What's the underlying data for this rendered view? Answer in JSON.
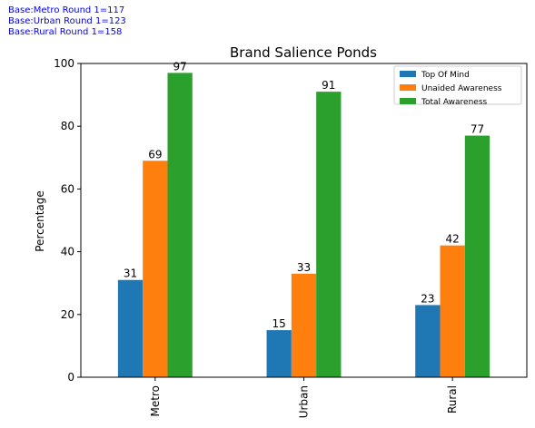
{
  "base_notes": [
    "Base:Metro Round 1=117",
    "Base:Urban Round 1=123",
    "Base:Rural Round 1=158"
  ],
  "chart_data": {
    "type": "bar",
    "title": "Brand Salience Ponds",
    "xlabel": "",
    "ylabel": "Percentage",
    "categories": [
      "Metro",
      "Urban",
      "Rural"
    ],
    "ylim": [
      0,
      100
    ],
    "yticks": [
      0,
      20,
      40,
      60,
      80,
      100
    ],
    "grid": false,
    "legend_position": "top-right",
    "series": [
      {
        "name": "Top Of Mind",
        "color": "#1f77b4",
        "values": [
          31,
          15,
          23
        ]
      },
      {
        "name": "Unaided Awareness",
        "color": "#ff7f0e",
        "values": [
          69,
          33,
          42
        ]
      },
      {
        "name": "Total Awareness",
        "color": "#2ca02c",
        "values": [
          97,
          91,
          77
        ]
      }
    ]
  }
}
